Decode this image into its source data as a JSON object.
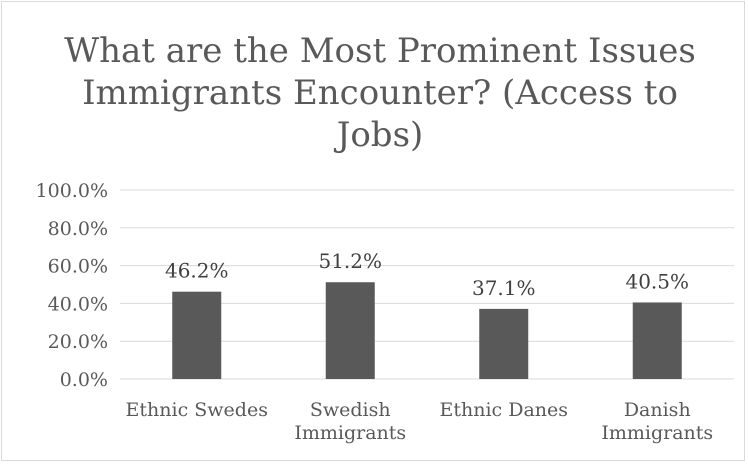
{
  "chart_data": {
    "type": "bar",
    "title": "What are the Most Prominent Issues Immigrants Encounter? (Access to Jobs)",
    "categories": [
      [
        "Ethnic Swedes"
      ],
      [
        "Swedish",
        "Immigrants"
      ],
      [
        "Ethnic Danes"
      ],
      [
        "Danish",
        "Immigrants"
      ]
    ],
    "values": [
      46.2,
      51.2,
      37.1,
      40.5
    ],
    "data_labels": [
      "46.2%",
      "51.2%",
      "37.1%",
      "40.5%"
    ],
    "yticks": [
      "0.0%",
      "20.0%",
      "40.0%",
      "60.0%",
      "80.0%",
      "100.0%"
    ],
    "ylim": [
      0,
      100
    ],
    "bar_color": "#595959",
    "grid_color": "#d9d9d9",
    "grid": true,
    "legend": "none"
  }
}
